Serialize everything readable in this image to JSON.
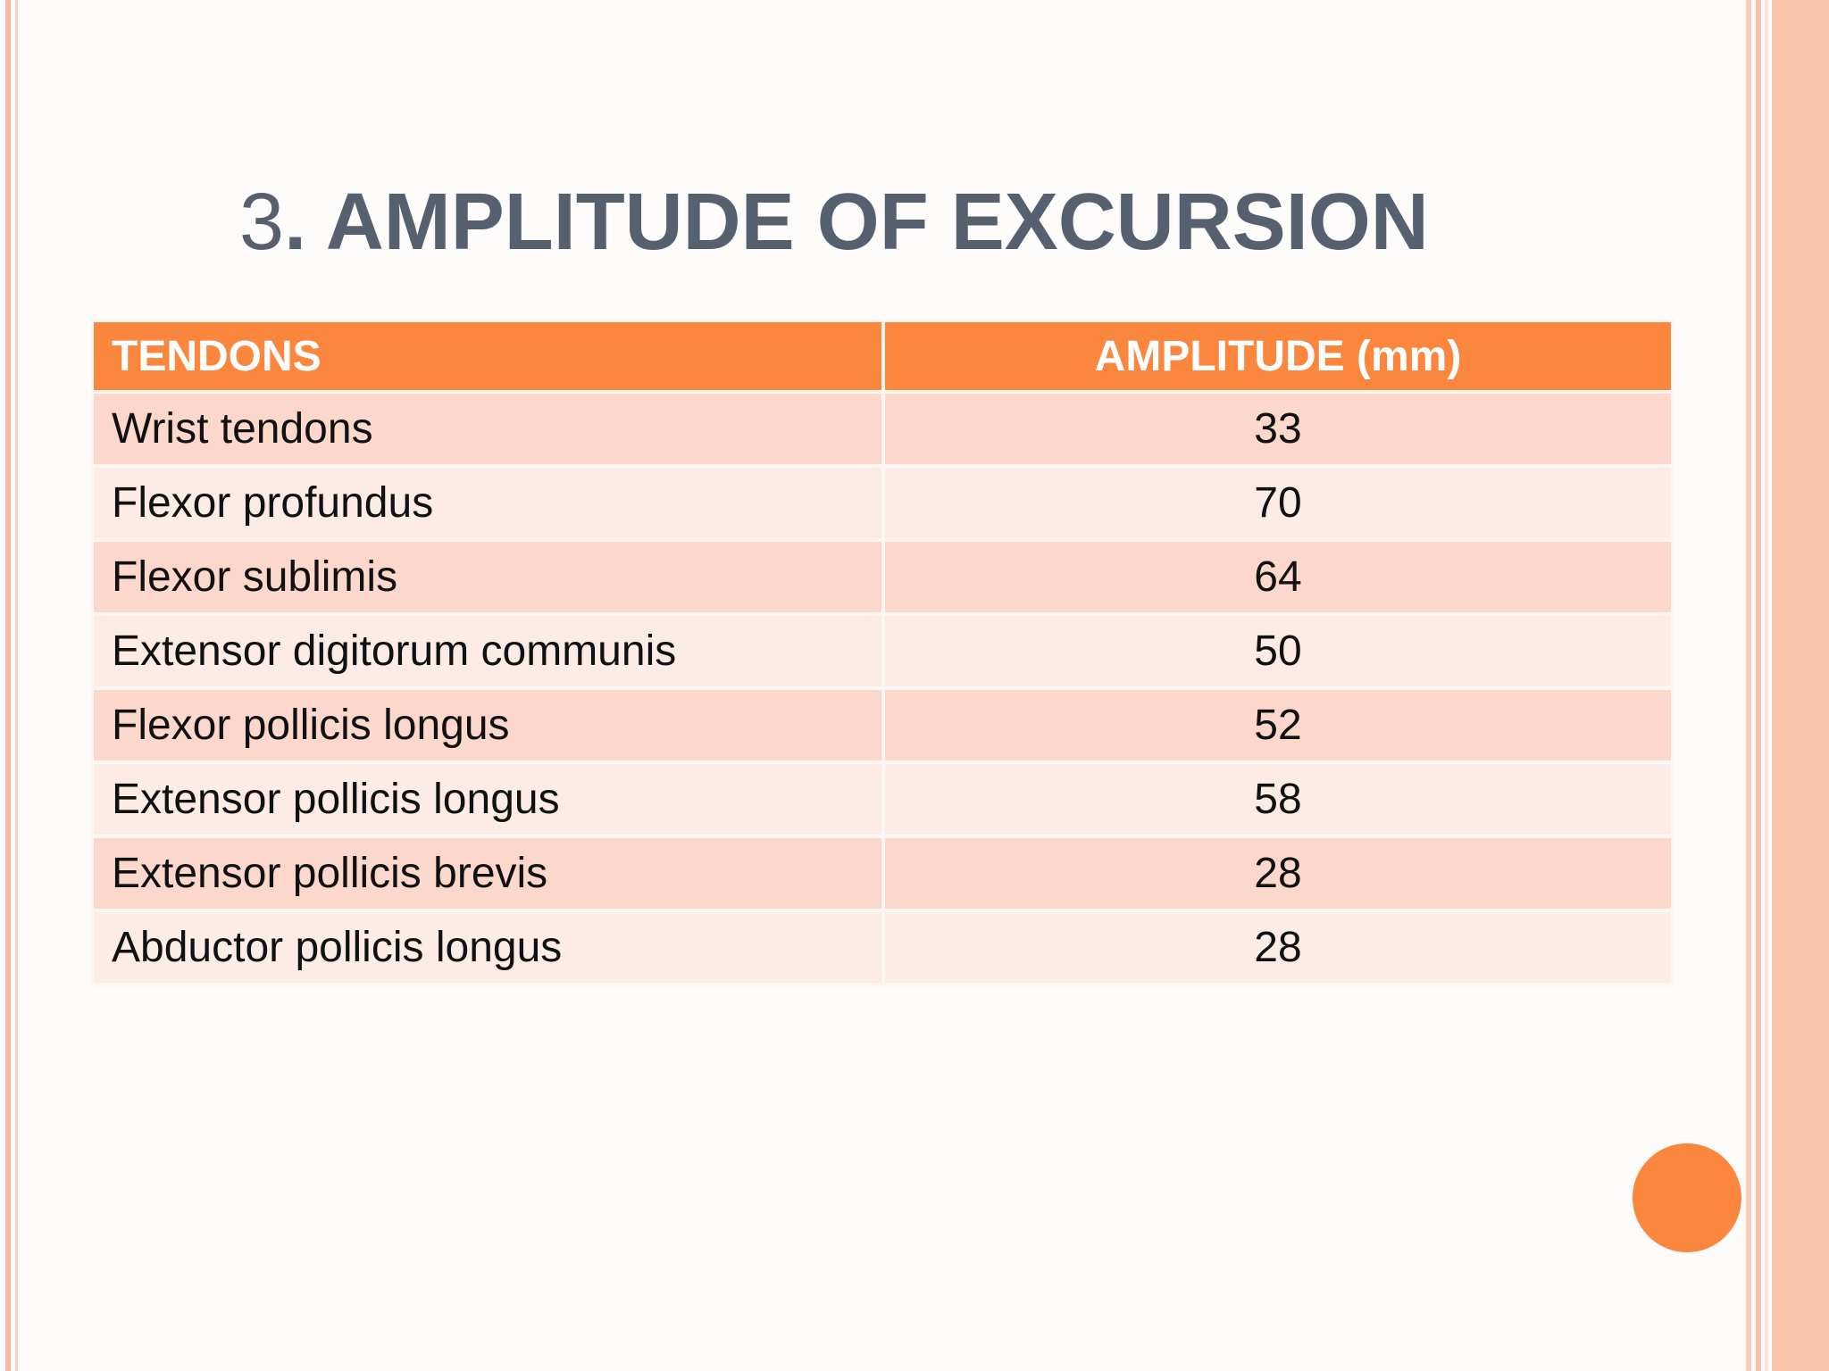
{
  "slide": {
    "title_number": "3",
    "title_text": ". AMPLITUDE OF EXCURSION"
  },
  "table": {
    "headers": [
      "TENDONS",
      "AMPLITUDE (mm)"
    ],
    "rows": [
      {
        "tendon": "Wrist tendons",
        "amplitude": "33"
      },
      {
        "tendon": "Flexor profundus",
        "amplitude": "70"
      },
      {
        "tendon": "Flexor sublimis",
        "amplitude": "64"
      },
      {
        "tendon": "Extensor digitorum communis",
        "amplitude": "50"
      },
      {
        "tendon": "Flexor pollicis longus",
        "amplitude": "52"
      },
      {
        "tendon": "Extensor pollicis longus",
        "amplitude": "58"
      },
      {
        "tendon": "Extensor pollicis brevis",
        "amplitude": "28"
      },
      {
        "tendon": "Abductor pollicis longus",
        "amplitude": "28"
      }
    ]
  },
  "colors": {
    "accent": "#fb863e",
    "row_dark": "#fcd8cc",
    "row_light": "#fdebe6",
    "title": "#56606f",
    "border_stripe": "#fbc4ae"
  }
}
